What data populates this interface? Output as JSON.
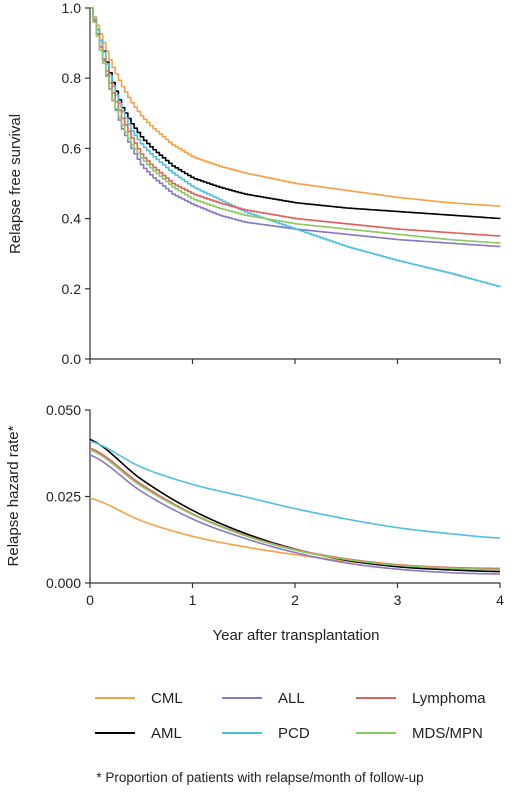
{
  "chart_data": [
    {
      "type": "line",
      "ylabel": "Relapse free survival",
      "xlim": [
        0,
        4
      ],
      "ylim": [
        0,
        1.0
      ],
      "yticks": [
        "0.0",
        "0.2",
        "0.4",
        "0.6",
        "0.8",
        "1.0"
      ],
      "xticks": [],
      "series": [
        {
          "name": "CML",
          "color": "#f4a24a",
          "x": [
            0,
            0.1,
            0.2,
            0.3,
            0.4,
            0.5,
            0.6,
            0.8,
            1.0,
            1.25,
            1.5,
            2.0,
            2.5,
            3.0,
            3.5,
            4.0
          ],
          "values": [
            1.0,
            0.92,
            0.84,
            0.78,
            0.73,
            0.69,
            0.66,
            0.61,
            0.575,
            0.55,
            0.53,
            0.5,
            0.48,
            0.46,
            0.445,
            0.435
          ]
        },
        {
          "name": "AML",
          "color": "#000000",
          "x": [
            0,
            0.1,
            0.2,
            0.3,
            0.4,
            0.5,
            0.6,
            0.8,
            1.0,
            1.25,
            1.5,
            2.0,
            2.5,
            3.0,
            3.5,
            4.0
          ],
          "values": [
            1.0,
            0.9,
            0.8,
            0.72,
            0.67,
            0.63,
            0.6,
            0.55,
            0.515,
            0.49,
            0.47,
            0.445,
            0.43,
            0.42,
            0.41,
            0.4
          ]
        },
        {
          "name": "ALL",
          "color": "#8a78c4",
          "x": [
            0,
            0.1,
            0.2,
            0.3,
            0.4,
            0.5,
            0.6,
            0.8,
            1.0,
            1.25,
            1.5,
            2.0,
            2.5,
            3.0,
            3.5,
            4.0
          ],
          "values": [
            1.0,
            0.88,
            0.75,
            0.66,
            0.6,
            0.55,
            0.52,
            0.47,
            0.44,
            0.41,
            0.39,
            0.37,
            0.355,
            0.34,
            0.33,
            0.32
          ]
        },
        {
          "name": "PCD",
          "color": "#4fc0e0",
          "x": [
            0,
            0.1,
            0.2,
            0.3,
            0.4,
            0.5,
            0.6,
            0.8,
            1.0,
            1.25,
            1.5,
            2.0,
            2.5,
            3.0,
            3.5,
            4.0
          ],
          "values": [
            1.0,
            0.9,
            0.79,
            0.71,
            0.65,
            0.61,
            0.58,
            0.53,
            0.49,
            0.455,
            0.42,
            0.37,
            0.32,
            0.28,
            0.245,
            0.205
          ]
        },
        {
          "name": "Lymphoma",
          "color": "#e0605c",
          "x": [
            0,
            0.1,
            0.2,
            0.3,
            0.4,
            0.5,
            0.6,
            0.8,
            1.0,
            1.25,
            1.5,
            2.0,
            2.5,
            3.0,
            3.5,
            4.0
          ],
          "values": [
            1.0,
            0.88,
            0.77,
            0.69,
            0.63,
            0.58,
            0.55,
            0.5,
            0.47,
            0.445,
            0.425,
            0.4,
            0.385,
            0.37,
            0.36,
            0.35
          ]
        },
        {
          "name": "MDS/MPN",
          "color": "#8cc865",
          "x": [
            0,
            0.1,
            0.2,
            0.3,
            0.4,
            0.5,
            0.6,
            0.8,
            1.0,
            1.25,
            1.5,
            2.0,
            2.5,
            3.0,
            3.5,
            4.0
          ],
          "values": [
            1.0,
            0.87,
            0.75,
            0.67,
            0.61,
            0.57,
            0.54,
            0.49,
            0.455,
            0.43,
            0.41,
            0.385,
            0.37,
            0.355,
            0.34,
            0.33
          ]
        }
      ]
    },
    {
      "type": "line",
      "xlabel": "Year after transplantation",
      "ylabel": "Relapse hazard rate*",
      "xlim": [
        0,
        4
      ],
      "ylim": [
        0,
        0.05
      ],
      "yticks": [
        "0.000",
        "0.025",
        "0.050"
      ],
      "xticks": [
        "0",
        "1",
        "2",
        "3",
        "4"
      ],
      "series": [
        {
          "name": "CML",
          "color": "#f4a24a",
          "x": [
            0,
            0.5,
            1,
            1.5,
            2,
            2.5,
            3,
            3.5,
            4
          ],
          "values": [
            0.0245,
            0.018,
            0.0135,
            0.0105,
            0.0082,
            0.0063,
            0.005,
            0.0043,
            0.0039
          ]
        },
        {
          "name": "AML",
          "color": "#000000",
          "x": [
            0,
            0.5,
            1,
            1.5,
            2,
            2.5,
            3,
            3.5,
            4
          ],
          "values": [
            0.0415,
            0.03,
            0.021,
            0.0145,
            0.0098,
            0.0066,
            0.0047,
            0.0038,
            0.0033
          ]
        },
        {
          "name": "ALL",
          "color": "#8a78c4",
          "x": [
            0,
            0.5,
            1,
            1.5,
            2,
            2.5,
            3,
            3.5,
            4
          ],
          "values": [
            0.037,
            0.0265,
            0.0185,
            0.013,
            0.0088,
            0.0058,
            0.004,
            0.003,
            0.0026
          ]
        },
        {
          "name": "PCD",
          "color": "#4fc0e0",
          "x": [
            0,
            0.5,
            1,
            1.5,
            2,
            2.5,
            3,
            3.5,
            4
          ],
          "values": [
            0.041,
            0.0335,
            0.0285,
            0.025,
            0.0215,
            0.0185,
            0.016,
            0.0143,
            0.013
          ]
        },
        {
          "name": "Lymphoma",
          "color": "#e0605c",
          "x": [
            0,
            0.5,
            1,
            1.5,
            2,
            2.5,
            3,
            3.5,
            4
          ],
          "values": [
            0.039,
            0.0285,
            0.02,
            0.014,
            0.0097,
            0.007,
            0.0053,
            0.0045,
            0.0042
          ]
        },
        {
          "name": "MDS/MPN",
          "color": "#8cc865",
          "x": [
            0,
            0.5,
            1,
            1.5,
            2,
            2.5,
            3,
            3.5,
            4
          ],
          "values": [
            0.0385,
            0.028,
            0.0198,
            0.0138,
            0.0095,
            0.0068,
            0.0051,
            0.0043,
            0.0039
          ]
        }
      ]
    }
  ],
  "legend": {
    "placement": "bottom",
    "entries": [
      {
        "label": "CML",
        "color": "#f4a24a"
      },
      {
        "label": "ALL",
        "color": "#8a78c4"
      },
      {
        "label": "Lymphoma",
        "color": "#e0605c"
      },
      {
        "label": "AML",
        "color": "#000000"
      },
      {
        "label": "PCD",
        "color": "#4fc0e0"
      },
      {
        "label": "MDS/MPN",
        "color": "#8cc865"
      }
    ]
  },
  "footnote": "* Proportion of patients with relapse/month of follow-up"
}
